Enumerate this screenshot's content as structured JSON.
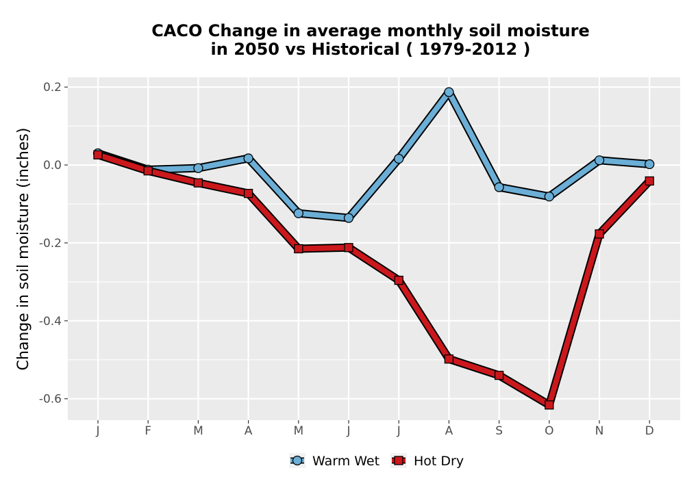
{
  "chart_data": {
    "type": "line",
    "title": "CACO  Change in average monthly soil moisture",
    "subtitle": "in 2050 vs Historical ( 1979-2012 )",
    "xlabel": "",
    "ylabel": "Change in soil moisture (inches)",
    "categories": [
      "J",
      "F",
      "M",
      "A",
      "M",
      "J",
      "J",
      "A",
      "S",
      "O",
      "N",
      "D"
    ],
    "ylim": [
      -0.655,
      0.225
    ],
    "yticks": [
      -0.6,
      -0.4,
      -0.2,
      0.0,
      0.2
    ],
    "ytick_labels": [
      "-0.6",
      "-0.4",
      "-0.2",
      "0.0",
      "0.2"
    ],
    "grid": true,
    "legend_position": "bottom",
    "series": [
      {
        "name": "Warm Wet",
        "color": "#6baed6",
        "marker": "circle",
        "values": [
          0.03,
          -0.012,
          -0.008,
          0.017,
          -0.124,
          -0.136,
          0.016,
          0.187,
          -0.057,
          -0.081,
          0.012,
          0.002
        ]
      },
      {
        "name": "Hot Dry",
        "color": "#cb181d",
        "marker": "square",
        "values": [
          0.026,
          -0.015,
          -0.046,
          -0.073,
          -0.215,
          -0.212,
          -0.296,
          -0.498,
          -0.54,
          -0.616,
          -0.177,
          -0.041
        ]
      }
    ],
    "colors": {
      "panel_background": "#ebebeb",
      "gridline": "#ffffff",
      "outline": "#000000"
    }
  }
}
